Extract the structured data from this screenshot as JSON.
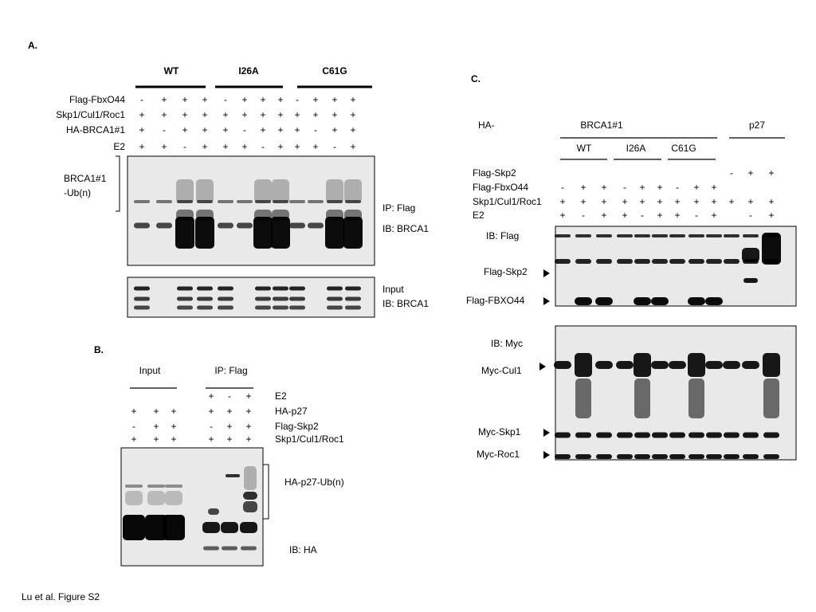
{
  "panel_a": {
    "label": "A.",
    "groups": [
      "WT",
      "I26A",
      "C61G"
    ],
    "rows": [
      {
        "name": "Flag-FbxO44",
        "signs": [
          "-",
          "+",
          "+",
          "+",
          "-",
          "+",
          "+",
          "+",
          "-",
          "+",
          "+",
          "+"
        ]
      },
      {
        "name": "Skp1/Cul1/Roc1",
        "signs": [
          "+",
          "+",
          "+",
          "+",
          "+",
          "+",
          "+",
          "+",
          "+",
          "+",
          "+",
          "+"
        ]
      },
      {
        "name": "HA-BRCA1#1",
        "signs": [
          "+",
          "-",
          "+",
          "+",
          "+",
          "-",
          "+",
          "+",
          "+",
          "-",
          "+",
          "+"
        ]
      },
      {
        "name": "E2",
        "signs": [
          "+",
          "+",
          "-",
          "+",
          "+",
          "+",
          "-",
          "+",
          "+",
          "+",
          "-",
          "+"
        ]
      }
    ],
    "bracket_label": [
      "BRCA1#1",
      "-Ub(n)"
    ],
    "blot_labels": [
      "IP: Flag",
      "IB: BRCA1",
      "Input",
      "IB: BRCA1"
    ]
  },
  "panel_b": {
    "label": "B.",
    "groups": [
      "Input",
      "IP: Flag"
    ],
    "rows": [
      {
        "name": "E2",
        "signs": [
          null,
          null,
          null,
          "+",
          "-",
          "+"
        ]
      },
      {
        "name": "HA-p27",
        "signs": [
          "+",
          "+",
          "+",
          "+",
          "+",
          "+"
        ]
      },
      {
        "name": "Flag-Skp2",
        "signs": [
          "-",
          "+",
          "+",
          "-",
          "+",
          "+"
        ]
      },
      {
        "name": "Skp1/Cul1/Roc1",
        "signs": [
          "+",
          "+",
          "+",
          "+",
          "+",
          "+"
        ]
      }
    ],
    "blot_labels": [
      "HA-p27-Ub(n)",
      "IB: HA"
    ]
  },
  "panel_c": {
    "label": "C.",
    "prefix": "HA-",
    "constructs": [
      "BRCA1#1",
      "p27"
    ],
    "groups": [
      "WT",
      "I26A",
      "C61G"
    ],
    "rows": [
      {
        "name": "Flag-Skp2",
        "signs": [
          null,
          null,
          null,
          null,
          null,
          null,
          null,
          null,
          null,
          "-",
          "+",
          "+"
        ]
      },
      {
        "name": "Flag-FbxO44",
        "signs": [
          "-",
          "+",
          "+",
          "-",
          "+",
          "+",
          "-",
          "+",
          "+",
          null,
          null,
          null
        ]
      },
      {
        "name": "Skp1/Cul1/Roc1",
        "signs": [
          "+",
          "+",
          "+",
          "+",
          "+",
          "+",
          "+",
          "+",
          "+",
          "+",
          "+",
          "+"
        ]
      },
      {
        "name": "E2",
        "signs": [
          "+",
          "-",
          "+",
          "+",
          "-",
          "+",
          "+",
          "-",
          "+",
          null,
          "-",
          "+"
        ]
      }
    ],
    "blot_labels": [
      "IB: Flag",
      "Flag-Skp2",
      "Flag-FBXO44",
      "IB: Myc",
      "Myc-Cul1",
      "Myc-Skp1",
      "Myc-Roc1"
    ]
  },
  "footer": "Lu et al. Figure S2"
}
